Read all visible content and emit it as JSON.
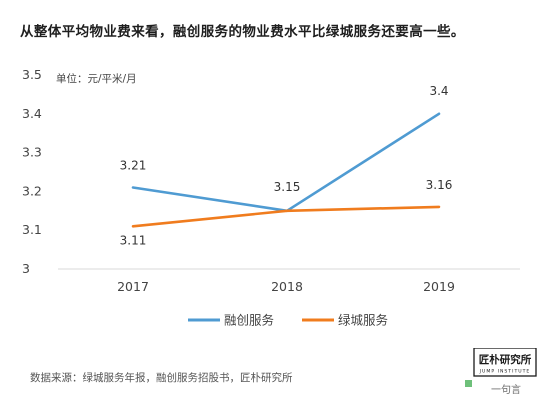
{
  "headline": "从整体平均物业费来看，融创服务的物业费水平比绿城服务还要高一些。",
  "source_note": "数据来源：绿城服务年报，融创服务招股书，匠朴研究所",
  "logo": {
    "name": "匠朴研究所",
    "sub": "JUMP INSTITUTE",
    "tagline": "一句言"
  },
  "colors": {
    "series_1": "#4f9bd2",
    "series_2": "#f07c1e",
    "axis": "#d9d9d9",
    "text": "#444444"
  },
  "chart_data": {
    "type": "line",
    "title": "",
    "unit_label": "单位：元/平米/月",
    "xlabel": "",
    "ylabel": "",
    "categories": [
      "2017",
      "2018",
      "2019"
    ],
    "ylim": [
      3,
      3.5
    ],
    "yticks": [
      "3",
      "3.1",
      "3.2",
      "3.3",
      "3.4",
      "3.5"
    ],
    "grid": false,
    "legend_position": "bottom",
    "series": [
      {
        "name": "融创服务",
        "values": [
          3.21,
          3.15,
          3.4
        ],
        "labels": [
          "3.21",
          "3.15",
          "3.4"
        ]
      },
      {
        "name": "绿城服务",
        "values": [
          3.11,
          3.15,
          3.16
        ],
        "labels": [
          "3.11",
          "",
          "3.16"
        ]
      }
    ]
  }
}
